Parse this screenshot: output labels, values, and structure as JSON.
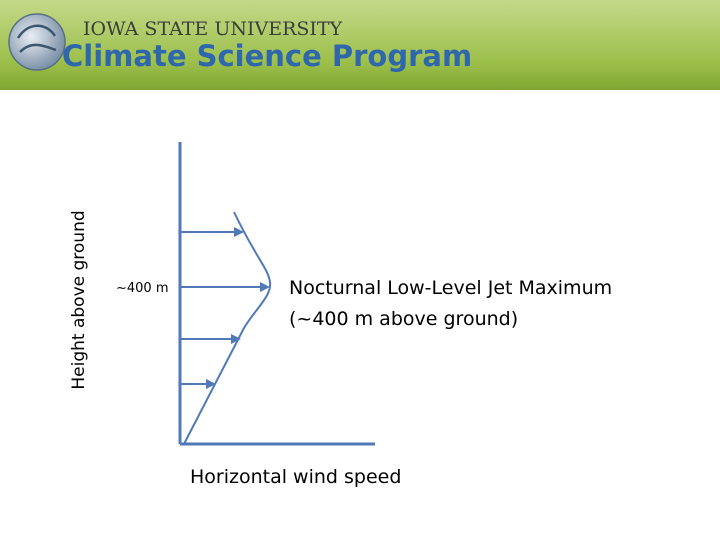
{
  "header": {
    "university": "Iowa State University",
    "program": "Climate Science Program"
  },
  "diagram": {
    "y_axis_label": "Height above ground",
    "x_axis_label": "Horizontal wind speed",
    "height_marker": "~400 m",
    "annotation": [
      "Nocturnal Low-Level Jet Maximum",
      "(~400 m above ground)"
    ]
  }
}
